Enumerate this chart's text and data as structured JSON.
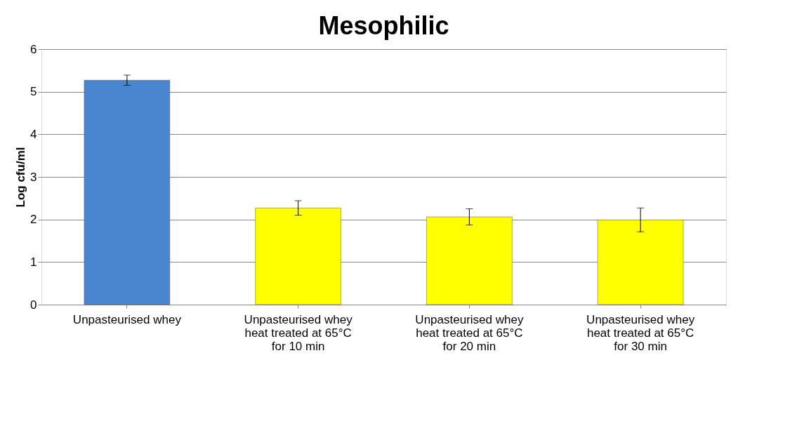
{
  "chart_data": {
    "type": "bar",
    "title": "Mesophilic",
    "ylabel": "Log cfu/ml",
    "categories": [
      "Unpasteurised whey",
      "Unpasteurised whey heat treated at 65°C for 10 min",
      "Unpasteurised whey heat treated at 65°C for 20 min",
      "Unpasteurised whey heat treated at 65°C for 30 min"
    ],
    "values": [
      5.27,
      2.27,
      2.06,
      1.99
    ],
    "errors": [
      0.12,
      0.17,
      0.19,
      0.28
    ],
    "colors": [
      "#4a86d0",
      "#ffff00",
      "#ffff00",
      "#ffff00"
    ],
    "ylim": [
      0,
      6
    ],
    "yticks": [
      0,
      1,
      2,
      3,
      4,
      5,
      6
    ],
    "grid": "y"
  }
}
